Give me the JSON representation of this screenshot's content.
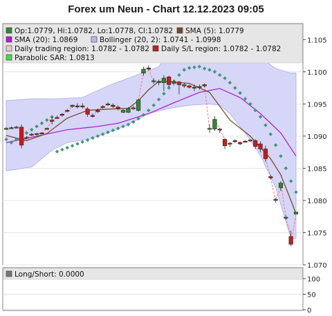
{
  "title": "Forex um Neun - Chart 12.12.2023 09:05",
  "legend": {
    "ohlc": "Op:1.0779, Hi:1.0782, Lo:1.0778, Cl:1.0782",
    "sma5": "SMA (5): 1.0779",
    "sma20": "SMA (20): 1.0869",
    "bollinger": "Bollinger (20, 2): 1.0741 - 1.0998",
    "daily_trading": "Daily trading region: 1.0782 - 1.0782",
    "daily_sl": "Daily S/L region: 1.0782 - 1.0782",
    "sar": "Parabolic SAR: 1.0813"
  },
  "lower_legend": {
    "longshort": "Long/Short: 0.0000"
  },
  "colors": {
    "bull": "#2e8b2e",
    "bear": "#cc1a1a",
    "sma5": "#7a4a2a",
    "sma20": "#b020d0",
    "band_fill": "#d6d6f8",
    "band_edge": "#a9a9ee",
    "sar": "#3a9e72",
    "dash": "#f08080",
    "legend_bg": "#e6e6e6"
  },
  "chart_data": [
    {
      "type": "candlestick",
      "title": "Forex um Neun - Chart 12.12.2023 09:05",
      "ylim": [
        1.07,
        1.1075
      ],
      "yticks": [
        "1.070",
        "1.075",
        "1.080",
        "1.085",
        "1.090",
        "1.095",
        "1.100",
        "1.105"
      ],
      "series": [
        {
          "name": "Op:1.0779, Hi:1.0782, Lo:1.0778, Cl:1.0782",
          "candles": [
            [
              1.0912,
              1.0914,
              1.091,
              1.0912
            ],
            [
              1.0913,
              1.0915,
              1.0911,
              1.0913
            ],
            [
              1.0914,
              1.0916,
              1.0912,
              1.0913
            ],
            [
              1.0914,
              1.0918,
              1.0881,
              1.0886
            ],
            [
              1.0897,
              1.09,
              1.0895,
              1.0898
            ],
            [
              1.0903,
              1.0905,
              1.09,
              1.0902
            ],
            [
              1.0903,
              1.0905,
              1.0901,
              1.0904
            ],
            [
              1.0905,
              1.0906,
              1.0903,
              1.0904
            ],
            [
              1.0912,
              1.0913,
              1.091,
              1.0911
            ],
            [
              1.0925,
              1.093,
              1.0918,
              1.0923
            ],
            [
              1.0929,
              1.0932,
              1.0927,
              1.0928
            ],
            [
              1.0934,
              1.0936,
              1.093,
              1.0933
            ],
            [
              1.094,
              1.0942,
              1.0937,
              1.0939
            ],
            [
              1.0946,
              1.0949,
              1.0944,
              1.0948
            ],
            [
              1.0947,
              1.0951,
              1.0943,
              1.0946
            ],
            [
              1.0947,
              1.0951,
              1.0943,
              1.0946
            ],
            [
              1.0942,
              1.0945,
              1.093,
              1.0934
            ],
            [
              1.0932,
              1.0935,
              1.0929,
              1.0931
            ],
            [
              1.094,
              1.0943,
              1.0936,
              1.0938
            ],
            [
              1.0946,
              1.0948,
              1.0943,
              1.0945
            ],
            [
              1.095,
              1.0953,
              1.0947,
              1.095
            ],
            [
              1.0948,
              1.0951,
              1.0944,
              1.0946
            ],
            [
              1.0945,
              1.0948,
              1.094,
              1.0943
            ],
            [
              1.0937,
              1.0942,
              1.0936,
              1.094
            ],
            [
              1.0937,
              1.0945,
              1.0936,
              1.0943
            ],
            [
              1.0944,
              1.0947,
              1.0941,
              1.0943
            ],
            [
              1.094,
              1.0958,
              1.0938,
              1.0956
            ],
            [
              1.0998,
              1.1008,
              1.0994,
              1.1004
            ],
            [
              1.1006,
              1.101,
              1.1002,
              1.1004
            ],
            [
              1.0985,
              1.099,
              1.0981,
              1.0986
            ],
            [
              1.0983,
              1.0988,
              1.0979,
              1.0985
            ],
            [
              1.0983,
              1.0995,
              1.097,
              1.099
            ],
            [
              1.0992,
              1.0994,
              1.0976,
              1.098
            ],
            [
              1.0982,
              1.0988,
              1.0979,
              1.0984
            ],
            [
              1.0984,
              1.0986,
              1.0965,
              1.098
            ],
            [
              1.0978,
              1.0983,
              1.0975,
              1.098
            ],
            [
              1.0978,
              1.098,
              1.0974,
              1.0976
            ],
            [
              1.0976,
              1.098,
              1.097,
              1.0975
            ],
            [
              1.0976,
              1.098,
              1.0972,
              1.0977
            ],
            [
              1.098,
              1.0982,
              1.0976,
              1.0978
            ],
            [
              1.0911,
              1.0918,
              1.0905,
              1.0912
            ],
            [
              1.0911,
              1.0931,
              1.0908,
              1.0926
            ],
            [
              1.0911,
              1.0913,
              1.0905,
              1.091
            ],
            [
              1.0895,
              1.0897,
              1.088,
              1.0885
            ],
            [
              1.0889,
              1.0891,
              1.0883,
              1.0888
            ],
            [
              1.0893,
              1.0895,
              1.0889,
              1.0892
            ],
            [
              1.089,
              1.0892,
              1.0886,
              1.0888
            ],
            [
              1.0892,
              1.0894,
              1.089,
              1.0891
            ],
            [
              1.0893,
              1.0895,
              1.0891,
              1.0894
            ],
            [
              1.0893,
              1.0895,
              1.088,
              1.0884
            ],
            [
              1.0888,
              1.0892,
              1.0875,
              1.088
            ],
            [
              1.088,
              1.0885,
              1.086,
              1.0865
            ],
            [
              1.0837,
              1.084,
              1.0833,
              1.0835
            ],
            [
              1.08,
              1.0803,
              1.0797,
              1.0802
            ],
            [
              1.082,
              1.083,
              1.0815,
              1.0827
            ],
            [
              1.0774,
              1.0777,
              1.077,
              1.0774
            ],
            [
              1.0744,
              1.0753,
              1.0729,
              1.0732
            ],
            [
              1.0779,
              1.0782,
              1.0778,
              1.0782
            ]
          ]
        }
      ],
      "overlays": [
        {
          "name": "SMA (5): 1.0779",
          "points": [
            [
              0,
              1.0901
            ],
            [
              4,
              1.0893
            ],
            [
              8,
              1.0904
            ],
            [
              12,
              1.0928
            ],
            [
              16,
              1.094
            ],
            [
              20,
              1.0942
            ],
            [
              24,
              1.0943
            ],
            [
              26,
              1.0955
            ],
            [
              28,
              1.0972
            ],
            [
              30,
              1.0985
            ],
            [
              32,
              1.0985
            ],
            [
              36,
              1.0982
            ],
            [
              40,
              1.0968
            ],
            [
              44,
              1.0925
            ],
            [
              48,
              1.09
            ],
            [
              52,
              1.0865
            ],
            [
              54,
              1.084
            ],
            [
              56,
              1.08
            ],
            [
              57,
              1.0779
            ]
          ]
        },
        {
          "name": "SMA (20): 1.0869",
          "points": [
            [
              0,
              1.089
            ],
            [
              6,
              1.09
            ],
            [
              12,
              1.091
            ],
            [
              18,
              1.0915
            ],
            [
              22,
              1.092
            ],
            [
              28,
              1.0935
            ],
            [
              33,
              1.0952
            ],
            [
              38,
              1.0968
            ],
            [
              42,
              1.0974
            ],
            [
              46,
              1.096
            ],
            [
              50,
              1.0935
            ],
            [
              54,
              1.0905
            ],
            [
              57,
              1.0869
            ]
          ]
        },
        {
          "name": "Bollinger (20, 2): 1.0741 - 1.0998",
          "upper": [
            [
              0,
              1.0955
            ],
            [
              5,
              1.0958
            ],
            [
              10,
              1.0958
            ],
            [
              15,
              1.096
            ],
            [
              20,
              1.0978
            ],
            [
              25,
              1.0993
            ],
            [
              30,
              1.1008
            ],
            [
              33,
              1.104
            ],
            [
              37,
              1.1055
            ],
            [
              41,
              1.1063
            ],
            [
              44,
              1.106
            ],
            [
              47,
              1.1052
            ],
            [
              50,
              1.1022
            ],
            [
              53,
              1.1005
            ],
            [
              56,
              1.0998
            ],
            [
              57,
              1.0998
            ]
          ],
          "lower": [
            [
              0,
              1.0846
            ],
            [
              5,
              1.0852
            ],
            [
              9,
              1.0878
            ],
            [
              12,
              1.089
            ],
            [
              16,
              1.0895
            ],
            [
              20,
              1.0905
            ],
            [
              24,
              1.0918
            ],
            [
              28,
              1.0935
            ],
            [
              32,
              1.0943
            ],
            [
              36,
              1.0948
            ],
            [
              40,
              1.095
            ],
            [
              42,
              1.0948
            ],
            [
              44,
              1.0935
            ],
            [
              47,
              1.0905
            ],
            [
              50,
              1.087
            ],
            [
              53,
              1.082
            ],
            [
              56,
              1.0741
            ],
            [
              57,
              1.0741
            ]
          ]
        },
        {
          "name": "Parabolic SAR: 1.0813",
          "points": [
            [
              0,
              1.0895
            ],
            [
              1,
              1.089
            ],
            [
              2,
              1.0895
            ],
            [
              3,
              1.09
            ],
            [
              4,
              1.0905
            ],
            [
              5,
              1.091
            ],
            [
              6,
              1.0915
            ],
            [
              7,
              1.092
            ],
            [
              8,
              1.0925
            ],
            [
              9,
              1.093
            ],
            [
              10,
              1.0876
            ],
            [
              11,
              1.0879
            ],
            [
              12,
              1.0882
            ],
            [
              13,
              1.0885
            ],
            [
              14,
              1.0888
            ],
            [
              15,
              1.0891
            ],
            [
              16,
              1.0894
            ],
            [
              17,
              1.0897
            ],
            [
              18,
              1.09
            ],
            [
              19,
              1.0903
            ],
            [
              20,
              1.0906
            ],
            [
              21,
              1.0909
            ],
            [
              22,
              1.0912
            ],
            [
              23,
              1.0915
            ],
            [
              24,
              1.0918
            ],
            [
              25,
              1.0922
            ],
            [
              26,
              1.0927
            ],
            [
              27,
              1.0933
            ],
            [
              28,
              1.094
            ],
            [
              29,
              1.0948
            ],
            [
              30,
              1.0957
            ],
            [
              31,
              1.0966
            ],
            [
              32,
              1.0975
            ],
            [
              33,
              1.0985
            ],
            [
              34,
              1.0995
            ],
            [
              35,
              1.1003
            ],
            [
              36,
              1.1006
            ],
            [
              37,
              1.1007
            ],
            [
              38,
              1.1008
            ],
            [
              39,
              1.1005
            ],
            [
              40,
              1.1003
            ],
            [
              41,
              1.1
            ],
            [
              42,
              1.0995
            ],
            [
              43,
              1.099
            ],
            [
              44,
              1.0983
            ],
            [
              45,
              1.0975
            ],
            [
              46,
              1.0967
            ],
            [
              47,
              1.0958
            ],
            [
              48,
              1.095
            ],
            [
              49,
              1.094
            ],
            [
              50,
              1.093
            ],
            [
              51,
              1.0917
            ],
            [
              52,
              1.0903
            ],
            [
              53,
              1.0886
            ],
            [
              54,
              1.0869
            ],
            [
              55,
              1.085
            ],
            [
              56,
              1.083
            ],
            [
              57,
              1.0813
            ]
          ]
        }
      ],
      "bands": [
        {
          "name": "Daily trading region: 1.0782 - 1.0782"
        },
        {
          "name": "Daily S/L region: 1.0782 - 1.0782"
        }
      ]
    },
    {
      "type": "bar",
      "title": "Long/Short: 0.0000",
      "ylim": [
        0,
        100
      ],
      "yticks": [
        "0",
        "50",
        "100"
      ],
      "values": []
    }
  ]
}
